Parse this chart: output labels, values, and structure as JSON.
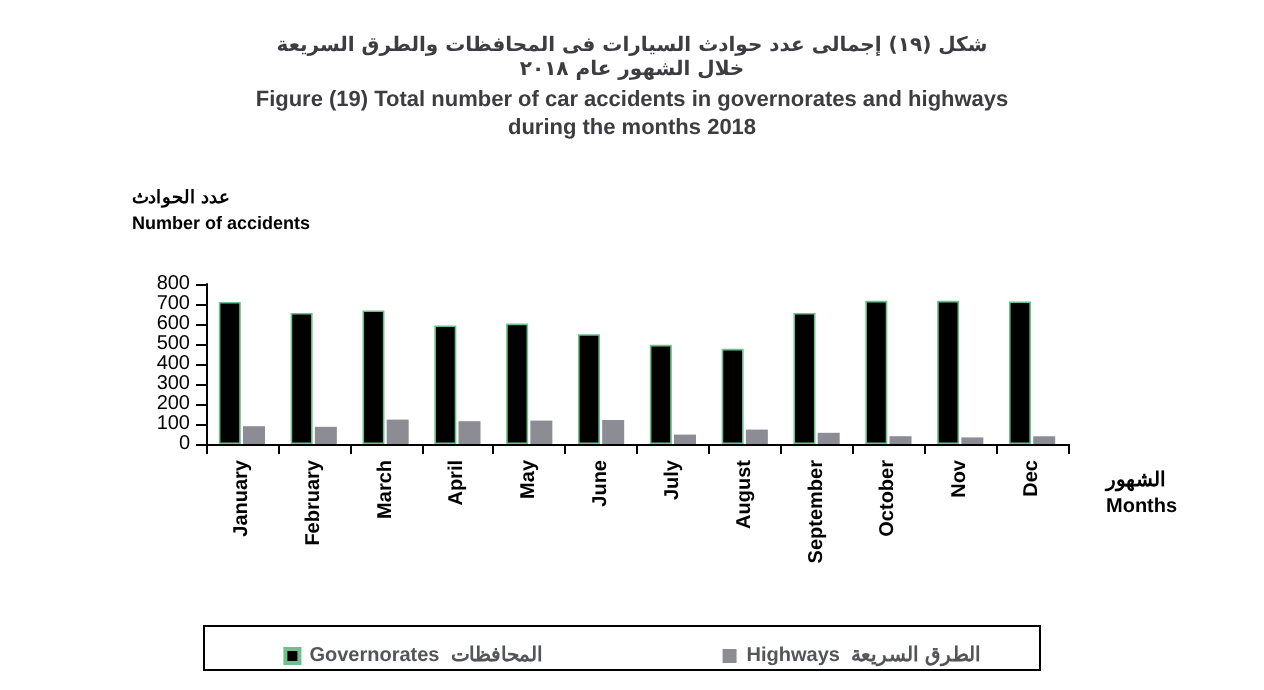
{
  "chart_data": {
    "type": "bar",
    "title": "شكل (١٩) إجمالى عدد حوادث السيارات فى المحافظات والطرق السريعة\nخلال الشهور عام ٢٠١٨",
    "subtitle": "Figure (19) Total number of car accidents in governorates and highways\nduring the months 2018",
    "ylabel": "عدد الحوادث\nNumber of accidents",
    "xlabel": "الشهور\nMonths",
    "categories": [
      "January",
      "February",
      "March",
      "April",
      "May",
      "June",
      "July",
      "August",
      "September",
      "October",
      "Nov",
      "Dec"
    ],
    "series": [
      {
        "name": "Governorates  المحافظات",
        "color": "#000000",
        "values": [
          710,
          655,
          668,
          593,
          602,
          549,
          496,
          476,
          655,
          716,
          716,
          713
        ]
      },
      {
        "name": "Highways  الطرق السريعة",
        "color": "#8c8c94",
        "values": [
          89,
          86,
          122,
          114,
          117,
          120,
          47,
          72,
          56,
          39,
          33,
          39
        ]
      }
    ],
    "ylim": [
      0,
      800
    ],
    "yticks": [
      0,
      100,
      200,
      300,
      400,
      500,
      600,
      700,
      800
    ],
    "grid": false,
    "legend": "bottom"
  }
}
